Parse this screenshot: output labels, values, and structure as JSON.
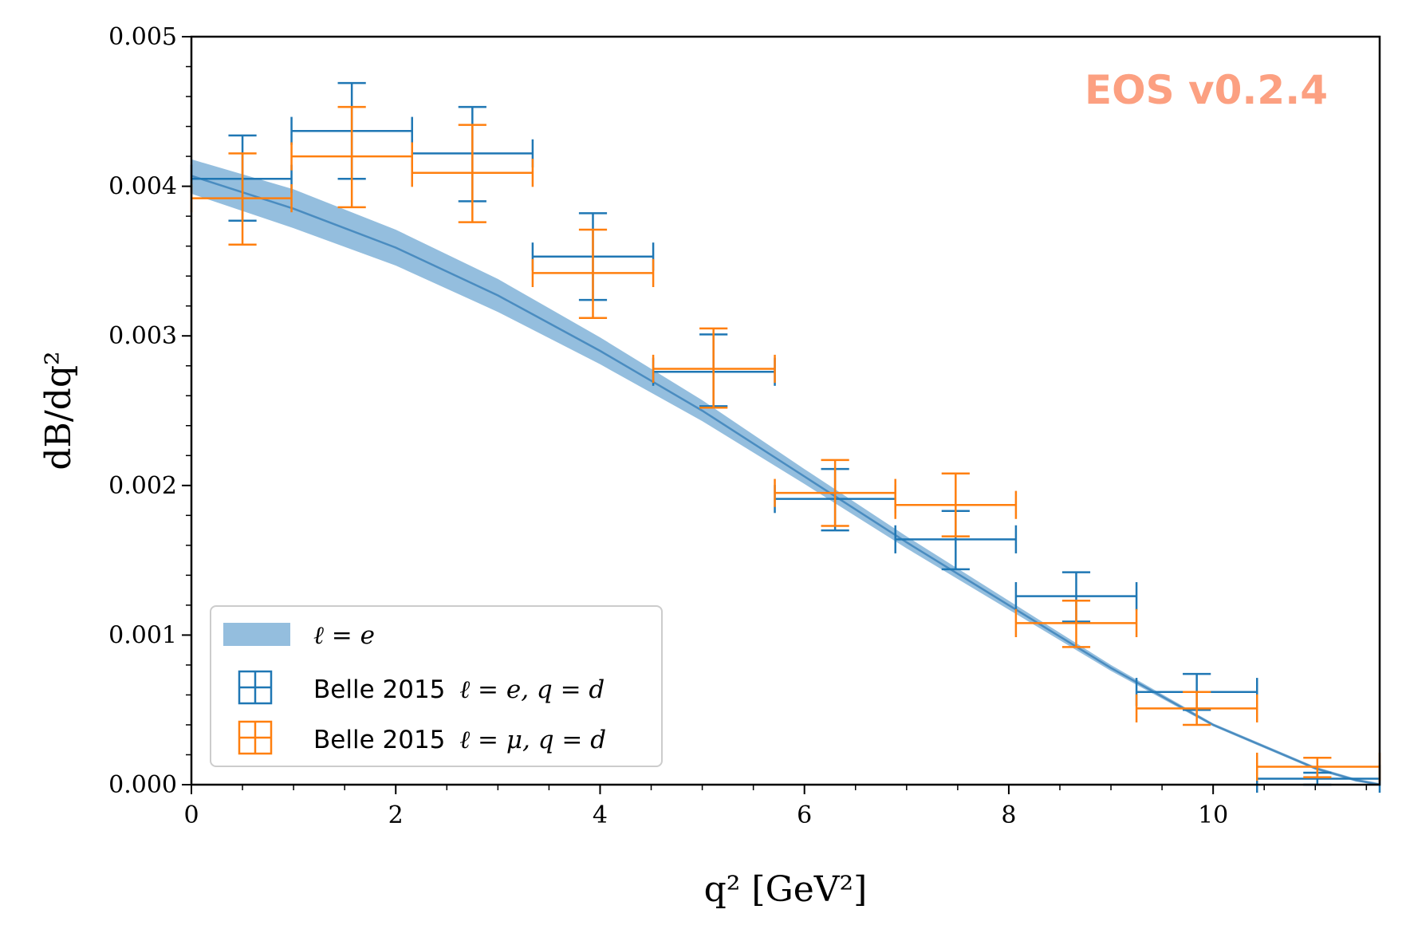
{
  "chart_data": {
    "type": "scatter",
    "title": "",
    "watermark": "EOS v0.2.4",
    "xlabel": "q² [GeV²]",
    "ylabel": "dB/dq²",
    "xlim": [
      0,
      11.63
    ],
    "ylim": [
      0,
      0.005
    ],
    "x_ticks": [
      0,
      2,
      4,
      6,
      8,
      10
    ],
    "x_tick_labels": [
      "0",
      "2",
      "4",
      "6",
      "8",
      "10"
    ],
    "y_ticks": [
      0,
      0.001,
      0.002,
      0.003,
      0.004,
      0.005
    ],
    "y_tick_labels": [
      "0.000",
      "0.001",
      "0.002",
      "0.003",
      "0.004",
      "0.005"
    ],
    "legend_position": "lower-left",
    "band": {
      "name": "ℓ = e",
      "color": "#5b9bcc",
      "x": [
        0,
        1,
        2,
        3,
        4,
        5,
        6,
        7,
        8,
        9,
        10,
        11,
        11.4,
        11.63
      ],
      "center": [
        0.00407,
        0.00385,
        0.00359,
        0.00327,
        0.0029,
        0.0025,
        0.00206,
        0.00162,
        0.0012,
        0.00078,
        0.0004,
        0.00011,
        3e-05,
        0.0
      ],
      "lower": [
        0.00395,
        0.00372,
        0.00347,
        0.00316,
        0.00281,
        0.00243,
        0.00201,
        0.00158,
        0.00117,
        0.00076,
        0.00039,
        0.0001,
        2e-05,
        0.0
      ],
      "upper": [
        0.00418,
        0.00398,
        0.00371,
        0.00338,
        0.00299,
        0.00257,
        0.00211,
        0.00166,
        0.00123,
        0.0008,
        0.00041,
        0.00012,
        4e-05,
        1e-05
      ]
    },
    "series": [
      {
        "name": "Belle 2015 ℓ = e, q = d",
        "label_text": "Belle 2015",
        "label_math": "ℓ = e, q = d",
        "color": "#1f77b4",
        "points": [
          {
            "x": 0.5,
            "xlo": 0.0,
            "xhi": 0.98,
            "y": 0.00405,
            "ylo": 0.00377,
            "yhi": 0.00434
          },
          {
            "x": 1.57,
            "xlo": 0.98,
            "xhi": 2.16,
            "y": 0.00437,
            "ylo": 0.00405,
            "yhi": 0.00469
          },
          {
            "x": 2.75,
            "xlo": 2.16,
            "xhi": 3.34,
            "y": 0.00422,
            "ylo": 0.0039,
            "yhi": 0.00453
          },
          {
            "x": 3.93,
            "xlo": 3.34,
            "xhi": 4.52,
            "y": 0.00353,
            "ylo": 0.00324,
            "yhi": 0.00382
          },
          {
            "x": 5.11,
            "xlo": 4.52,
            "xhi": 5.71,
            "y": 0.00276,
            "ylo": 0.00253,
            "yhi": 0.00301
          },
          {
            "x": 6.3,
            "xlo": 5.71,
            "xhi": 6.89,
            "y": 0.00191,
            "ylo": 0.0017,
            "yhi": 0.00211
          },
          {
            "x": 7.48,
            "xlo": 6.89,
            "xhi": 8.07,
            "y": 0.00164,
            "ylo": 0.00144,
            "yhi": 0.00183
          },
          {
            "x": 8.66,
            "xlo": 8.07,
            "xhi": 9.25,
            "y": 0.00126,
            "ylo": 0.00109,
            "yhi": 0.00142
          },
          {
            "x": 9.84,
            "xlo": 9.25,
            "xhi": 10.43,
            "y": 0.00062,
            "ylo": 0.0005,
            "yhi": 0.00074
          },
          {
            "x": 11.02,
            "xlo": 10.43,
            "xhi": 11.63,
            "y": 4e-05,
            "ylo": 0.0,
            "yhi": 8e-05
          }
        ]
      },
      {
        "name": "Belle 2015 ℓ = μ, q = d",
        "label_text": "Belle 2015",
        "label_math": "ℓ = μ, q = d",
        "color": "#ff7f0e",
        "points": [
          {
            "x": 0.5,
            "xlo": 0.0,
            "xhi": 0.98,
            "y": 0.00392,
            "ylo": 0.00361,
            "yhi": 0.00422
          },
          {
            "x": 1.57,
            "xlo": 0.98,
            "xhi": 2.16,
            "y": 0.0042,
            "ylo": 0.00386,
            "yhi": 0.00453
          },
          {
            "x": 2.75,
            "xlo": 2.16,
            "xhi": 3.34,
            "y": 0.00409,
            "ylo": 0.00376,
            "yhi": 0.00441
          },
          {
            "x": 3.93,
            "xlo": 3.34,
            "xhi": 4.52,
            "y": 0.00342,
            "ylo": 0.00312,
            "yhi": 0.00371
          },
          {
            "x": 5.11,
            "xlo": 4.52,
            "xhi": 5.71,
            "y": 0.00278,
            "ylo": 0.00252,
            "yhi": 0.00305
          },
          {
            "x": 6.3,
            "xlo": 5.71,
            "xhi": 6.89,
            "y": 0.00195,
            "ylo": 0.00173,
            "yhi": 0.00217
          },
          {
            "x": 7.48,
            "xlo": 6.89,
            "xhi": 8.07,
            "y": 0.00187,
            "ylo": 0.00166,
            "yhi": 0.00208
          },
          {
            "x": 8.66,
            "xlo": 8.07,
            "xhi": 9.25,
            "y": 0.00108,
            "ylo": 0.00092,
            "yhi": 0.00123
          },
          {
            "x": 9.84,
            "xlo": 9.25,
            "xhi": 10.43,
            "y": 0.00051,
            "ylo": 0.0004,
            "yhi": 0.00062
          },
          {
            "x": 11.02,
            "xlo": 10.43,
            "xhi": 11.63,
            "y": 0.00012,
            "ylo": 5e-05,
            "yhi": 0.00018
          }
        ]
      }
    ]
  }
}
